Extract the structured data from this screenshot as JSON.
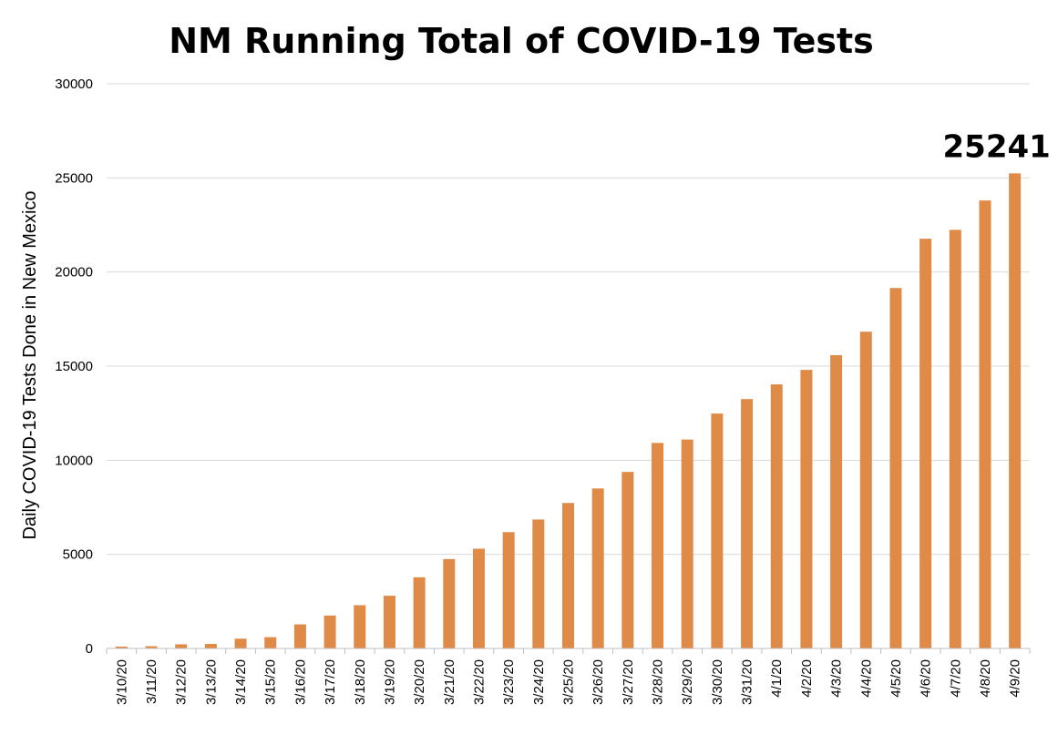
{
  "chart_data": {
    "type": "bar",
    "title": "NM Running Total of COVID-19 Tests",
    "xlabel": "",
    "ylabel": "Daily COVID-19 Tests Done in New Mexico",
    "ylim": [
      0,
      30000
    ],
    "yticks": [
      0,
      5000,
      10000,
      15000,
      20000,
      25000,
      30000
    ],
    "grid": true,
    "legend": "none",
    "bar_color": "#E08A47",
    "categories": [
      "3/10/20",
      "3/11/20",
      "3/12/20",
      "3/13/20",
      "3/14/20",
      "3/15/20",
      "3/16/20",
      "3/17/20",
      "3/18/20",
      "3/19/20",
      "3/20/20",
      "3/21/20",
      "3/22/20",
      "3/23/20",
      "3/24/20",
      "3/25/20",
      "3/26/20",
      "3/27/20",
      "3/28/20",
      "3/29/20",
      "3/30/20",
      "3/31/20",
      "4/1/20",
      "4/2/20",
      "4/3/20",
      "4/4/20",
      "4/5/20",
      "4/6/20",
      "4/7/20",
      "4/8/20",
      "4/9/20"
    ],
    "values": [
      100,
      120,
      220,
      240,
      520,
      600,
      1280,
      1750,
      2300,
      2800,
      3780,
      4750,
      5300,
      6180,
      6850,
      7730,
      8500,
      9380,
      10920,
      11100,
      12480,
      13250,
      14030,
      14800,
      15580,
      16830,
      19150,
      21770,
      22240,
      23800,
      25241
    ],
    "annotations": [
      {
        "category": "4/9/20",
        "text": "25241"
      }
    ]
  }
}
